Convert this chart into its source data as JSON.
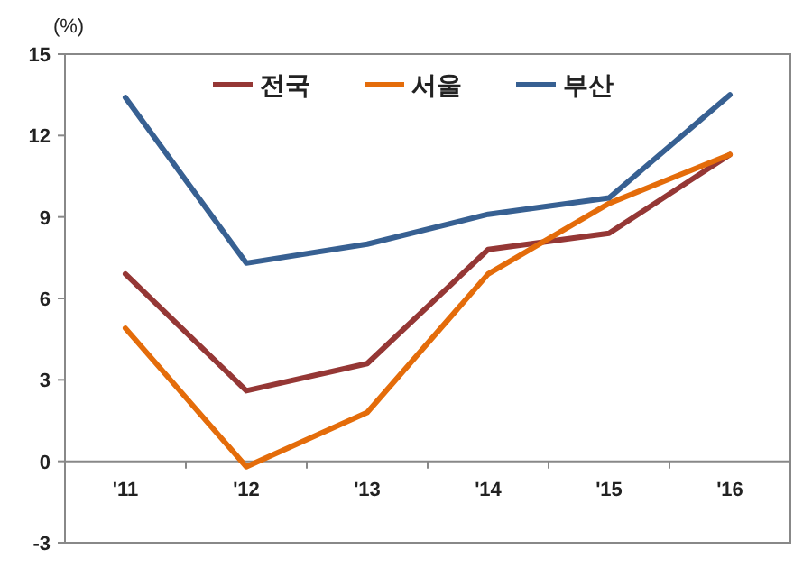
{
  "chart_data": {
    "type": "line",
    "ylabel": "(%)",
    "categories": [
      "'11",
      "'12",
      "'13",
      "'14",
      "'15",
      "'16"
    ],
    "series": [
      {
        "name": "전국",
        "color": "#953735",
        "values": [
          6.9,
          2.6,
          3.6,
          7.8,
          8.4,
          11.3
        ]
      },
      {
        "name": "서울",
        "color": "#e46c0a",
        "values": [
          4.9,
          -0.2,
          1.8,
          6.9,
          9.5,
          11.3
        ]
      },
      {
        "name": "부산",
        "color": "#376092",
        "values": [
          13.4,
          7.3,
          8.0,
          9.1,
          9.7,
          13.5
        ]
      }
    ],
    "ylim": [
      -3,
      15
    ],
    "yticks": [
      -3,
      0,
      3,
      6,
      9,
      12,
      15
    ],
    "grid": false,
    "legend": "top",
    "marker": "none",
    "line_style": "solid"
  }
}
